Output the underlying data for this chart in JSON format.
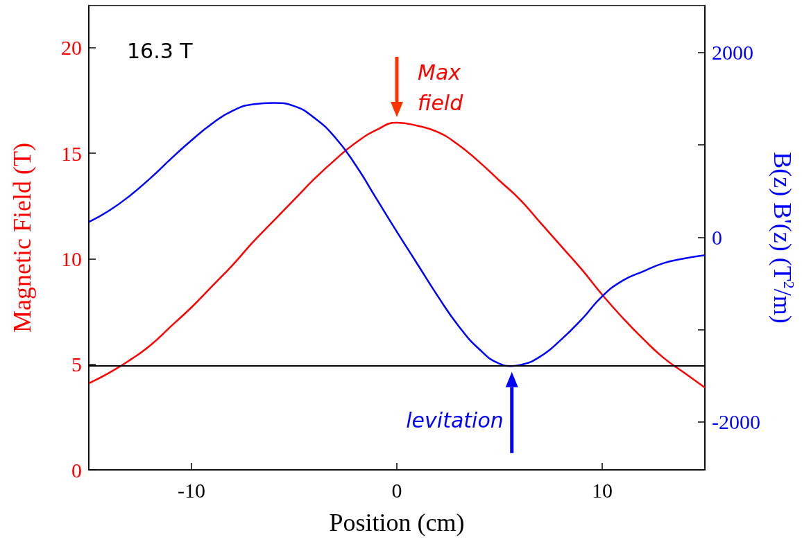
{
  "chart_data": {
    "type": "line",
    "xlabel": "Position (cm)",
    "ylabel": "Magnetic Field (T)",
    "y2label": "B(z) B'(z) (T$^{2}$/m)",
    "x": [
      -15,
      -14,
      -13,
      -12,
      -11,
      -10,
      -9,
      -8,
      -7,
      -6,
      -5,
      -4,
      -3,
      -2,
      -1,
      0,
      1,
      2,
      3,
      4,
      5,
      6,
      7,
      8,
      9,
      10,
      11,
      12,
      13,
      14,
      15
    ],
    "series": [
      {
        "color": "#ff0000",
        "values": [
          4.1,
          4.6,
          5.2,
          5.9,
          6.8,
          7.7,
          8.7,
          9.7,
          10.8,
          11.8,
          12.8,
          13.8,
          14.7,
          15.5,
          16.1,
          16.45,
          16.3,
          16.0,
          15.4,
          14.6,
          13.7,
          12.8,
          11.7,
          10.6,
          9.5,
          8.3,
          7.2,
          6.2,
          5.3,
          4.6,
          3.9
        ]
      },
      {
        "color": "#0000ff",
        "axis": "y2",
        "x": [
          -15,
          -14,
          -13,
          -12,
          -11,
          -10,
          -9,
          -8,
          -7,
          -6,
          -5,
          -4,
          -3,
          -2,
          -1,
          0,
          1,
          2,
          3,
          4,
          5,
          5.6,
          6,
          7,
          8,
          9,
          10,
          11,
          12,
          13,
          14,
          15
        ],
        "values": [
          165,
          290,
          450,
          640,
          850,
          1050,
          1230,
          1370,
          1440,
          1455,
          1420,
          1290,
          1080,
          780,
          420,
          60,
          -290,
          -640,
          -960,
          -1210,
          -1370,
          -1395,
          -1385,
          -1290,
          -1110,
          -890,
          -640,
          -470,
          -370,
          -280,
          -230,
          -195
        ]
      }
    ],
    "xlim": [
      -15,
      15
    ],
    "xticks": [
      -10,
      0,
      10
    ],
    "ylim": [
      0,
      22
    ],
    "yticks": [
      0,
      5,
      10,
      15,
      20
    ],
    "y2lim": [
      -2520,
      2510
    ],
    "y2ticks": [
      -2000,
      {
        "value": -1000,
        "label": null
      },
      0,
      {
        "value": 1000,
        "label": null
      },
      2000
    ],
    "ref_lines": [
      {
        "axis": "y2",
        "value": -1390,
        "color": "#000000"
      }
    ],
    "annotations": [
      "16.3 T",
      {
        "text": "Max field",
        "x": 0,
        "y": 16.45
      },
      {
        "text": "levitation",
        "x": 5.6,
        "y": 4.9
      }
    ],
    "grid": false,
    "marker": "none",
    "line_style": "solid"
  }
}
